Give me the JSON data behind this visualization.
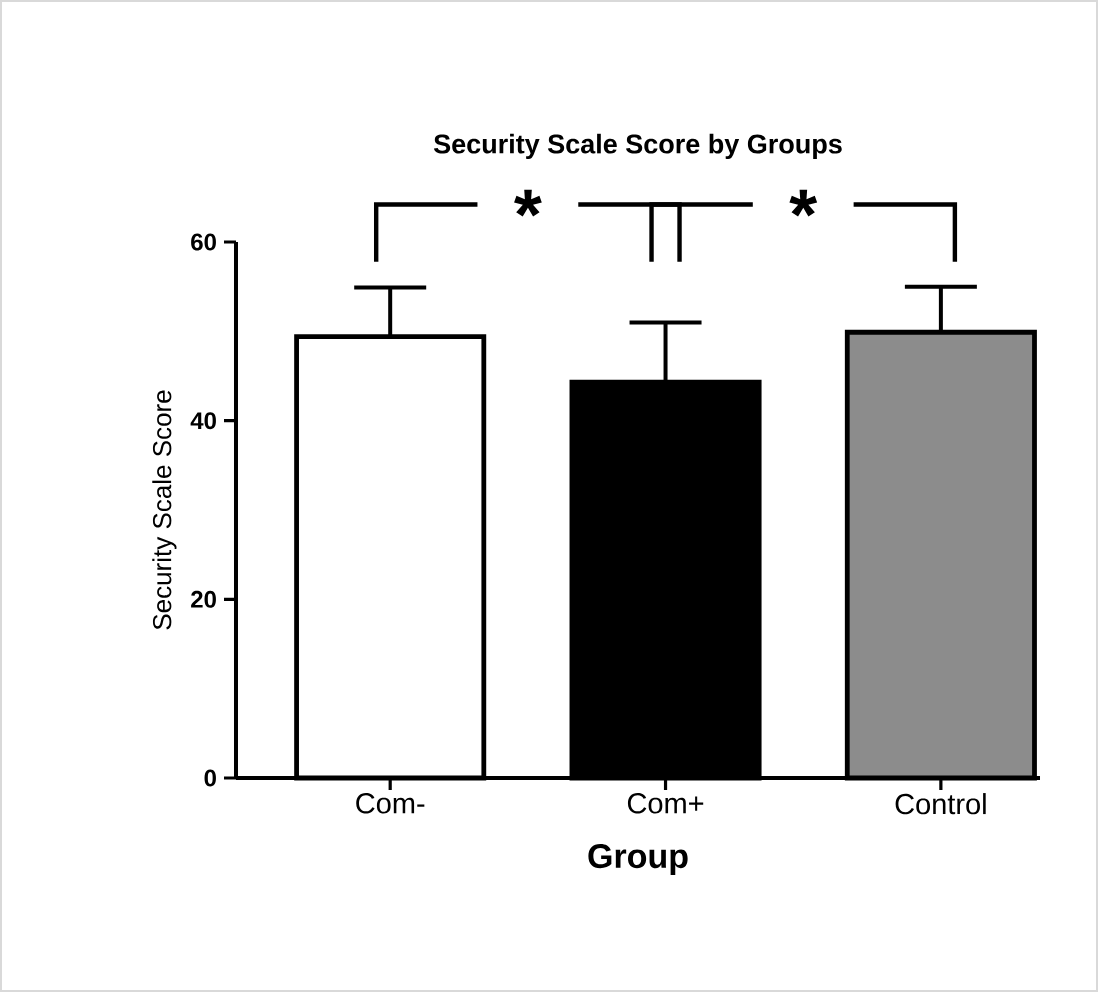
{
  "chart_data": {
    "type": "bar",
    "title": "Security Scale Score by Groups",
    "xlabel": "Group",
    "ylabel": "Security  Scale Score",
    "categories": [
      "Com-",
      "Com+",
      "Control"
    ],
    "values": [
      49.4,
      44.3,
      49.9
    ],
    "colors": [
      "#ffffff",
      "#000000",
      "#8c8c8c"
    ],
    "errors": [
      [
        49.4,
        54.9
      ],
      [
        44.3,
        51.0
      ],
      [
        49.9,
        55.0
      ]
    ],
    "ylim": [
      0,
      60
    ],
    "yticks": [
      0,
      20,
      40,
      60
    ],
    "annotations": [
      "*",
      "*"
    ]
  }
}
